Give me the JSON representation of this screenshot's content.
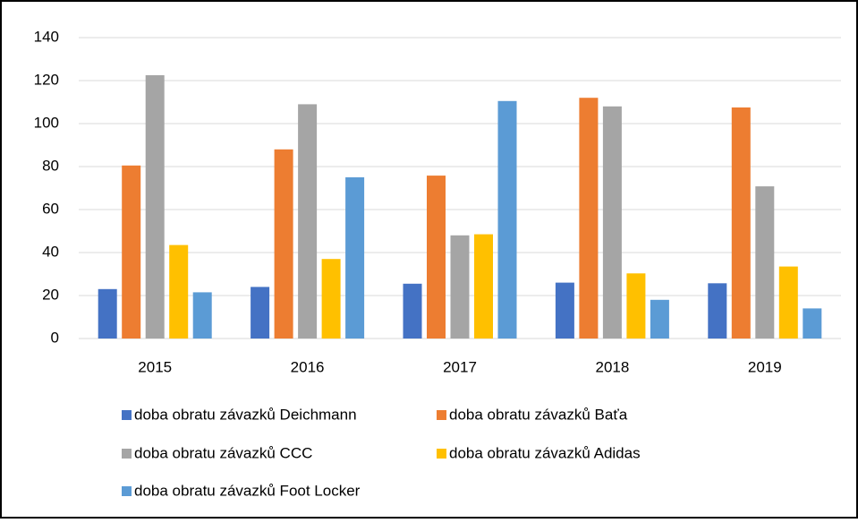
{
  "chart_data": {
    "type": "bar",
    "categories": [
      "2015",
      "2016",
      "2017",
      "2018",
      "2019"
    ],
    "series": [
      {
        "name": "doba obratu závazků Deichmann",
        "color": "#4472c4",
        "values": [
          23,
          24,
          25.5,
          26,
          25.7
        ]
      },
      {
        "name": "doba obratu závazků Baťa",
        "color": "#ed7d31",
        "values": [
          80.5,
          88,
          75.8,
          112,
          107.5
        ]
      },
      {
        "name": "doba obratu závazků CCC",
        "color": "#a5a5a5",
        "values": [
          122.5,
          109,
          48,
          108,
          70.8
        ]
      },
      {
        "name": "doba obratu závazků Adidas",
        "color": "#ffc000",
        "values": [
          43.5,
          37,
          48.5,
          30.3,
          33.5
        ]
      },
      {
        "name": "doba obratu závazků Foot Locker",
        "color": "#5b9bd5",
        "values": [
          21.5,
          75,
          110.5,
          18,
          14
        ]
      }
    ],
    "ylim": [
      0,
      140
    ],
    "yticks": [
      0,
      20,
      40,
      60,
      80,
      100,
      120,
      140
    ],
    "grid": true,
    "legend": "bottom"
  }
}
